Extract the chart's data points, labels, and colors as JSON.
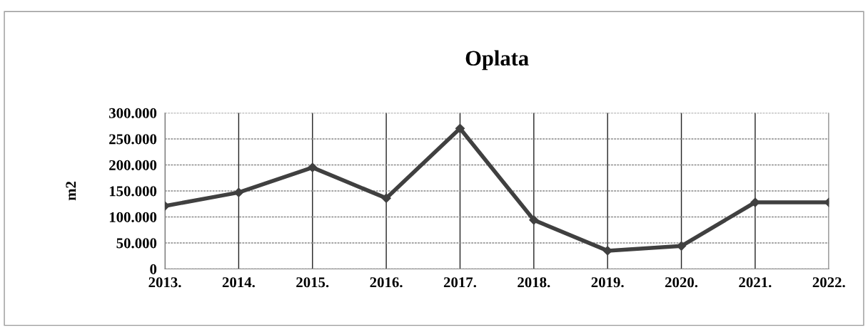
{
  "chart_data": {
    "type": "line",
    "title": "Oplata",
    "ylabel": "m2",
    "categories": [
      "2013.",
      "2014.",
      "2015.",
      "2016.",
      "2017.",
      "2018.",
      "2019.",
      "2020.",
      "2021.",
      "2022."
    ],
    "series": [
      {
        "color": "#404040",
        "values": [
          121000,
          147000,
          195000,
          136000,
          270000,
          94000,
          35000,
          44000,
          128000,
          128000
        ]
      }
    ],
    "ylim": [
      0,
      300000
    ],
    "yticks": [
      {
        "value": 0,
        "label": "0"
      },
      {
        "value": 50000,
        "label": "50.000"
      },
      {
        "value": 100000,
        "label": "100.000"
      },
      {
        "value": 150000,
        "label": "150.000"
      },
      {
        "value": 200000,
        "label": "200.000"
      },
      {
        "value": 250000,
        "label": "250.000"
      },
      {
        "value": 300000,
        "label": "300.000"
      }
    ],
    "grid": true,
    "marker": "diamond",
    "line_style": "solid"
  }
}
